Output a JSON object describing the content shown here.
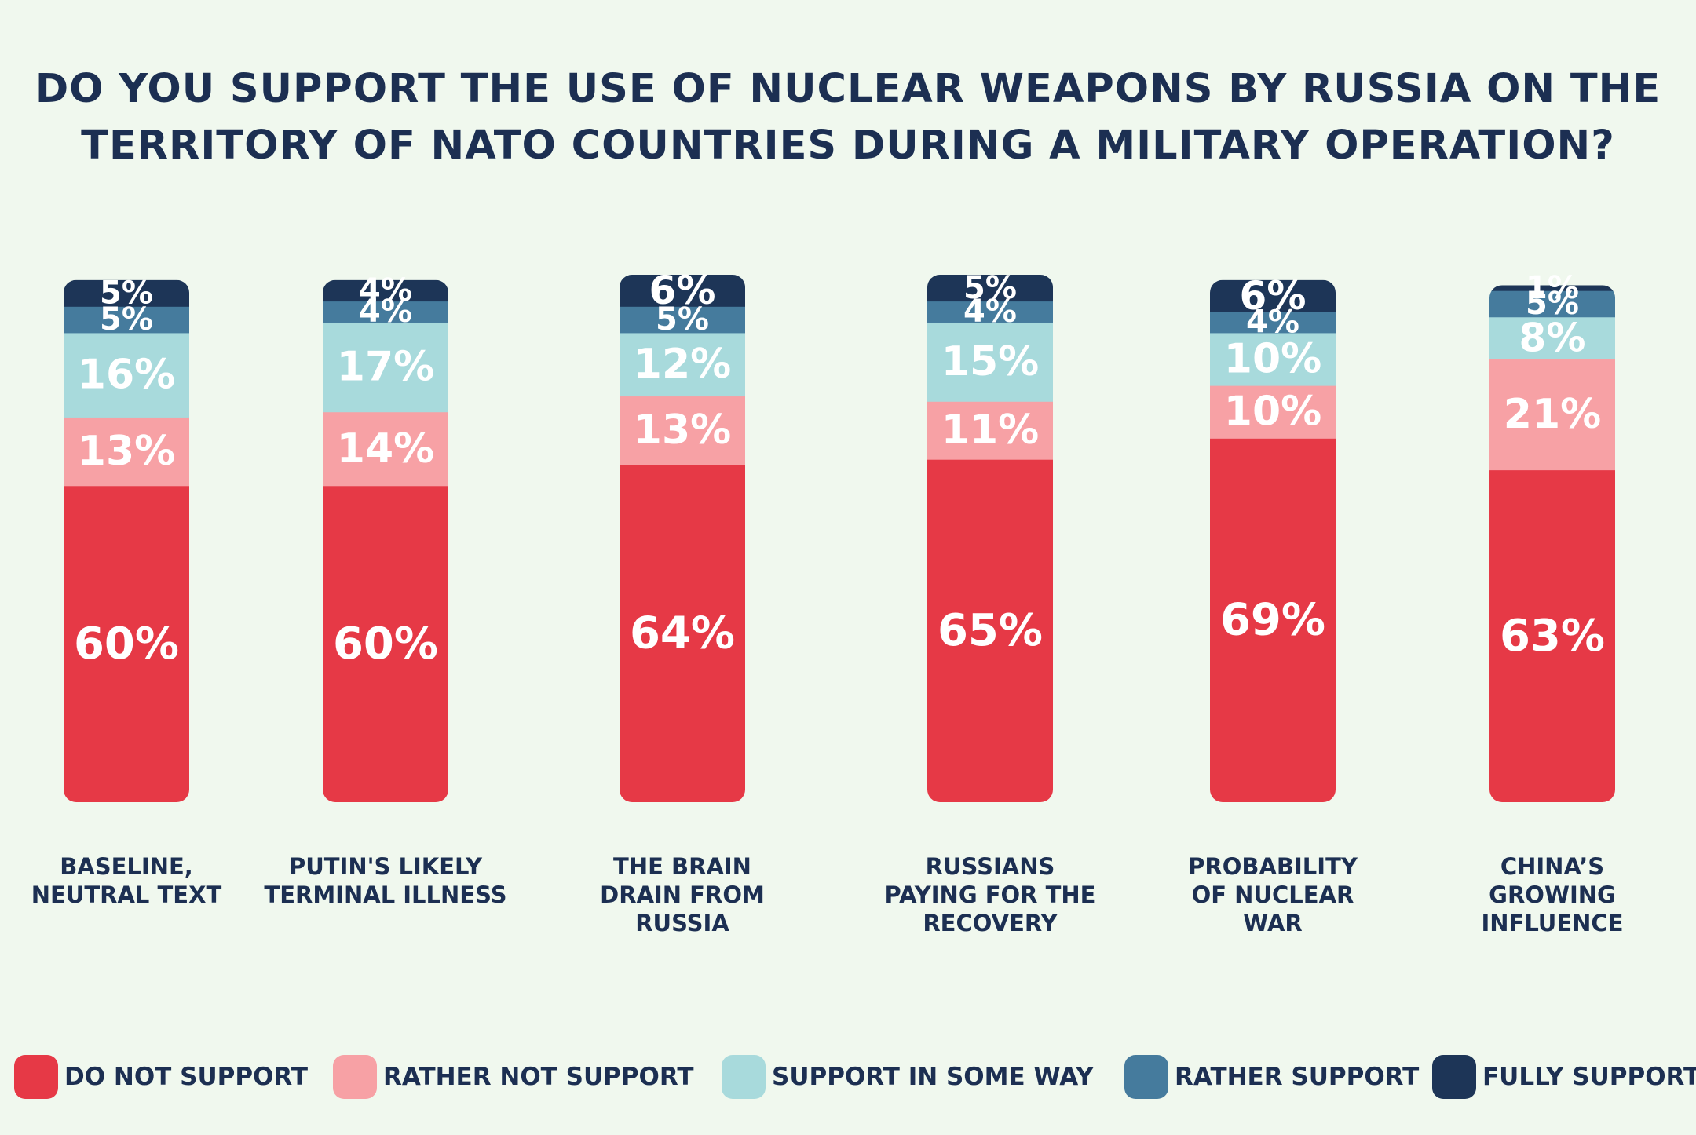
{
  "chart_data": {
    "type": "bar",
    "stacked": true,
    "title_lines": [
      "DO YOU SUPPORT THE USE OF NUCLEAR WEAPONS BY RUSSIA ON THE",
      "TERRITORY OF NATO COUNTRIES DURING A MILITARY OPERATION?"
    ],
    "categories": [
      [
        "BASELINE,",
        "NEUTRAL TEXT"
      ],
      [
        "PUTIN'S LIKELY",
        "TERMINAL ILLNESS"
      ],
      [
        "THE BRAIN",
        "DRAIN FROM",
        "RUSSIA"
      ],
      [
        "RUSSIANS",
        "PAYING FOR THE",
        "RECOVERY"
      ],
      [
        "PROBABILITY",
        "OF NUCLEAR",
        "WAR"
      ],
      [
        "CHINA’S",
        "GROWING",
        "INFLUENCE"
      ]
    ],
    "series": [
      {
        "name": "DO NOT SUPPORT",
        "color": "#e63946",
        "values": [
          60,
          60,
          64,
          65,
          69,
          63
        ]
      },
      {
        "name": "RATHER NOT SUPPORT",
        "color": "#f7a1a5",
        "values": [
          13,
          14,
          13,
          11,
          10,
          21
        ]
      },
      {
        "name": "SUPPORT IN SOME WAY",
        "color": "#a8dadc",
        "values": [
          16,
          17,
          12,
          15,
          10,
          8
        ]
      },
      {
        "name": "RATHER SUPPORT",
        "color": "#457b9d",
        "values": [
          5,
          4,
          5,
          4,
          4,
          5
        ]
      },
      {
        "name": "FULLY SUPPORT",
        "color": "#1d3557",
        "values": [
          5,
          4,
          6,
          5,
          6,
          1
        ]
      }
    ],
    "value_suffix": "%",
    "legend_position": "bottom",
    "grid": false
  }
}
